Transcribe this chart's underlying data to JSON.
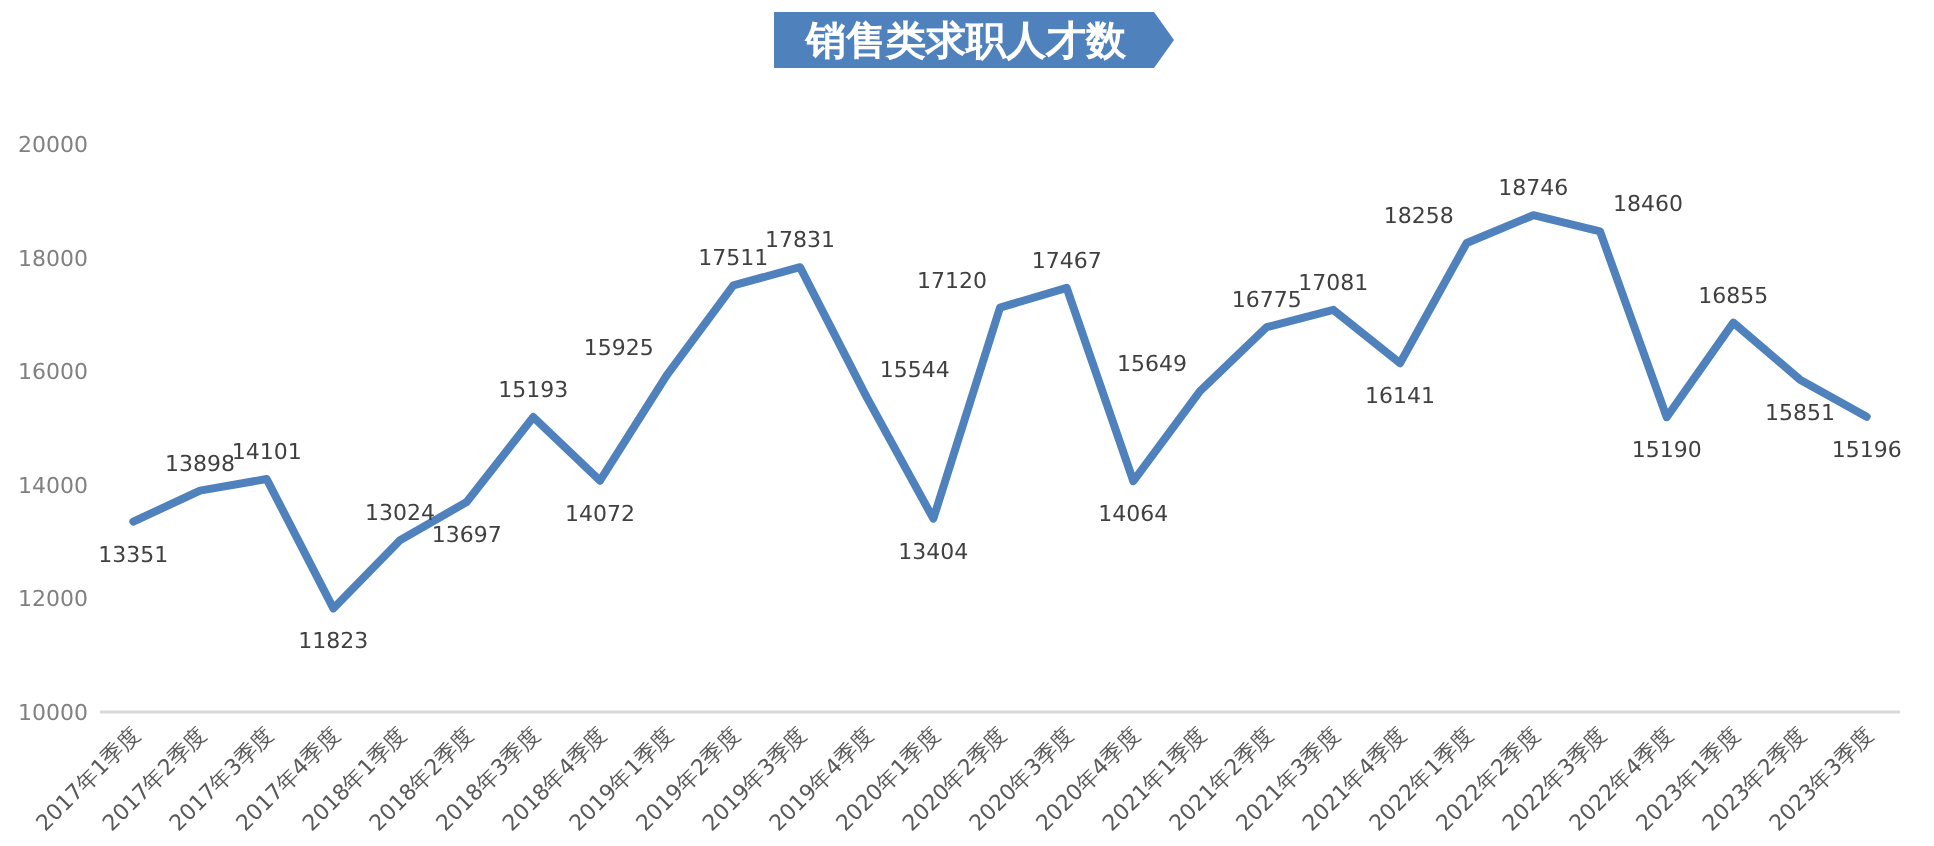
{
  "chart_data": {
    "type": "line",
    "title": "销售类求职人才数",
    "categories": [
      "2017年1季度",
      "2017年2季度",
      "2017年3季度",
      "2017年4季度",
      "2018年1季度",
      "2018年2季度",
      "2018年3季度",
      "2018年4季度",
      "2019年1季度",
      "2019年2季度",
      "2019年3季度",
      "2019年4季度",
      "2020年1季度",
      "2020年2季度",
      "2020年3季度",
      "2020年4季度",
      "2021年1季度",
      "2021年2季度",
      "2021年3季度",
      "2021年4季度",
      "2022年1季度",
      "2022年2季度",
      "2022年3季度",
      "2022年4季度",
      "2023年1季度",
      "2023年2季度",
      "2023年3季度"
    ],
    "series": [
      {
        "color": "#4f81bd",
        "values": [
          13351,
          13898,
          14101,
          11823,
          13024,
          13697,
          15193,
          14072,
          15925,
          17511,
          17831,
          15544,
          13404,
          17120,
          17467,
          14064,
          15649,
          16775,
          17081,
          16141,
          18258,
          18746,
          18460,
          15190,
          16855,
          15851,
          15196
        ]
      }
    ],
    "ylim": [
      10000,
      20000
    ],
    "yticks": [
      10000,
      12000,
      14000,
      16000,
      18000,
      20000
    ],
    "data_labels": true,
    "grid": false,
    "marker": "none",
    "line_style": "solid"
  }
}
